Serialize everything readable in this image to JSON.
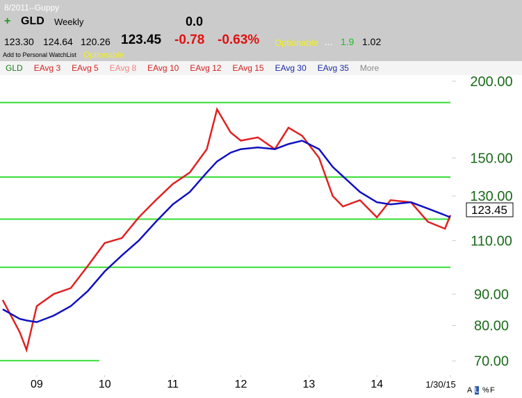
{
  "header": {
    "layout_name": "8/2011--Guppy",
    "symbol": "GLD",
    "period": "Weekly",
    "indicator_value": "0.0",
    "open": "123.30",
    "high": "124.64",
    "low": "120.26",
    "last": "123.45",
    "change": "-0.78",
    "change_pct": "-0.63%",
    "optionable": "Optionable",
    "ellipsis": "...",
    "ratio": "1.9",
    "beta": "1.02",
    "watchlist": "Add to Personal WatchList",
    "optionable2": "Optionable"
  },
  "indicators": [
    {
      "label": "GLD",
      "color": "#1a7a1a"
    },
    {
      "label": "EAvg 3",
      "color": "#d42020"
    },
    {
      "label": "EAvg 5",
      "color": "#d42020"
    },
    {
      "label": "EAvg 8",
      "color": "#f08080"
    },
    {
      "label": "EAvg 10",
      "color": "#d42020"
    },
    {
      "label": "EAvg 12",
      "color": "#d42020"
    },
    {
      "label": "EAvg 15",
      "color": "#d42020"
    },
    {
      "label": "EAvg 30",
      "color": "#1a2aa0"
    },
    {
      "label": "EAvg 35",
      "color": "#1a2aa0"
    },
    {
      "label": "More",
      "color": "#888888"
    }
  ],
  "footer": {
    "buttons": [
      "A",
      "L",
      "%",
      "F"
    ]
  },
  "chart_data": {
    "type": "line",
    "log_scale": true,
    "x": [
      2008.5,
      2008.75,
      2008.85,
      2009.0,
      2009.25,
      2009.5,
      2009.75,
      2010.0,
      2010.25,
      2010.5,
      2010.75,
      2011.0,
      2011.25,
      2011.5,
      2011.65,
      2011.85,
      2012.0,
      2012.25,
      2012.5,
      2012.7,
      2012.9,
      2013.15,
      2013.35,
      2013.5,
      2013.75,
      2014.0,
      2014.2,
      2014.5,
      2014.75,
      2015.0,
      2015.08
    ],
    "series": [
      {
        "color": "#e02020",
        "values": [
          88,
          78,
          73,
          86,
          90,
          92,
          100,
          109,
          111,
          120,
          128,
          136,
          142,
          155,
          180,
          165,
          160,
          162,
          155,
          168,
          163,
          150,
          130,
          125,
          128,
          120,
          128,
          127,
          118,
          115,
          121
        ]
      },
      {
        "color": "#1010c0",
        "values": [
          85,
          82,
          81.5,
          81,
          83,
          86,
          91,
          98,
          104,
          110,
          118,
          126,
          132,
          142,
          148,
          153,
          155,
          156,
          155,
          158,
          160,
          155,
          145,
          140,
          132,
          127,
          126,
          127,
          124,
          121,
          120
        ]
      }
    ],
    "levels": [
      184.6,
      139.6,
      119.2,
      99.5
    ],
    "support_line": {
      "value": 70.1,
      "x": [
        2008.46,
        2009.92
      ]
    },
    "xlim": [
      2008.46,
      2015.08
    ],
    "ylim": [
      66.4,
      204.7
    ],
    "yticks": [
      {
        "value": 200,
        "label": "200.00"
      },
      {
        "value": 150,
        "label": "150.00"
      },
      {
        "value": 130,
        "label": "130.00"
      },
      {
        "value": 110,
        "label": "110.00"
      },
      {
        "value": 90,
        "label": "90.00"
      },
      {
        "value": 80,
        "label": "80.00"
      },
      {
        "value": 70,
        "label": "70.00"
      }
    ],
    "xticks": [
      {
        "value": 2009,
        "label": "09"
      },
      {
        "value": 2010,
        "label": "10"
      },
      {
        "value": 2011,
        "label": "11"
      },
      {
        "value": 2012,
        "label": "12"
      },
      {
        "value": 2013,
        "label": "13"
      },
      {
        "value": 2014,
        "label": "14"
      },
      {
        "value": 2015.08,
        "label": "1/30/15"
      }
    ],
    "level_color": "#33dd33",
    "tick_color": "#1a6a1a"
  }
}
